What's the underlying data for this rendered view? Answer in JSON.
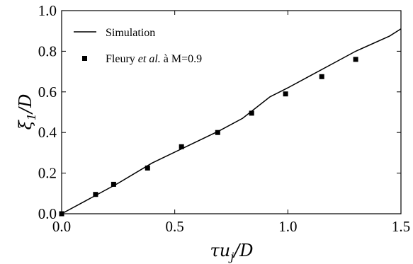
{
  "chart_data": {
    "type": "line",
    "xlabel": "τu_j/D",
    "ylabel": "ξ_1/D",
    "xlim": [
      0.0,
      1.5
    ],
    "ylim": [
      0.0,
      1.0
    ],
    "x_ticks": [
      0.0,
      0.5,
      1.0,
      1.5
    ],
    "x_tick_labels": [
      "0.0",
      "0.5",
      "1.0",
      "1.5"
    ],
    "y_ticks": [
      0.0,
      0.2,
      0.4,
      0.6,
      0.8,
      1.0
    ],
    "y_tick_labels": [
      "0.0",
      "0.2",
      "0.4",
      "0.6",
      "0.8",
      "1.0"
    ],
    "grid": false,
    "legend_position": "top-left",
    "series": [
      {
        "name": "Simulation",
        "kind": "line",
        "color": "#000000",
        "x": [
          0.0,
          0.1,
          0.25,
          0.4,
          0.55,
          0.7,
          0.8,
          0.92,
          1.0,
          1.1,
          1.2,
          1.3,
          1.45,
          1.5
        ],
        "y": [
          0.0,
          0.06,
          0.15,
          0.25,
          0.33,
          0.41,
          0.47,
          0.575,
          0.62,
          0.68,
          0.74,
          0.8,
          0.875,
          0.91
        ]
      },
      {
        "name_parts": [
          "Fleury ",
          "et al.",
          " à M=0.9"
        ],
        "kind": "scatter",
        "marker": "square",
        "color": "#000000",
        "x": [
          0.0,
          0.15,
          0.23,
          0.38,
          0.53,
          0.69,
          0.84,
          0.99,
          1.15,
          1.3
        ],
        "y": [
          0.0,
          0.095,
          0.145,
          0.225,
          0.33,
          0.4,
          0.495,
          0.59,
          0.675,
          0.76
        ]
      }
    ]
  }
}
